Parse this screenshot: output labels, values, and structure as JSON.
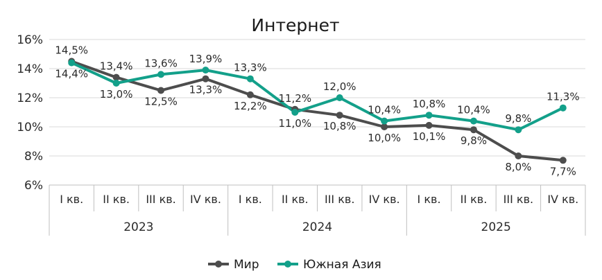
{
  "chart_data": {
    "type": "line",
    "title": "Интернет",
    "categories": [
      "I кв.",
      "II кв.",
      "III кв.",
      "IV кв.",
      "I кв.",
      "II кв.",
      "III кв.",
      "IV кв.",
      "I кв.",
      "II кв.",
      "III кв.",
      "IV кв."
    ],
    "groups": [
      {
        "label": "2023",
        "span": 4
      },
      {
        "label": "2024",
        "span": 4
      },
      {
        "label": "2025",
        "span": 4
      }
    ],
    "ylim": [
      6,
      16
    ],
    "yticks": [
      6,
      8,
      10,
      12,
      14,
      16
    ],
    "ytick_labels": [
      "6%",
      "8%",
      "10%",
      "12%",
      "14%",
      "16%"
    ],
    "grid": true,
    "legend": "bottom",
    "series": [
      {
        "name": "Мир",
        "color": "#4d4d4d",
        "values": [
          14.5,
          13.4,
          12.5,
          13.3,
          12.2,
          11.2,
          10.8,
          10.0,
          10.1,
          9.8,
          8.0,
          7.7
        ],
        "labels": [
          "14,5%",
          "13,4%",
          "12,5%",
          "13,3%",
          "12,2%",
          "11,2%",
          "10,8%",
          "10,0%",
          "10,1%",
          "9,8%",
          "8,0%",
          "7,7%"
        ]
      },
      {
        "name": "Южная Азия",
        "color": "#13a08a",
        "values": [
          14.4,
          13.0,
          13.6,
          13.9,
          13.3,
          11.0,
          12.0,
          10.4,
          10.8,
          10.4,
          9.8,
          11.3
        ],
        "labels": [
          "14,4%",
          "13,0%",
          "13,6%",
          "13,9%",
          "13,3%",
          "11,0%",
          "12,0%",
          "10,4%",
          "10,8%",
          "10,4%",
          "9,8%",
          "11,3%"
        ]
      }
    ]
  }
}
